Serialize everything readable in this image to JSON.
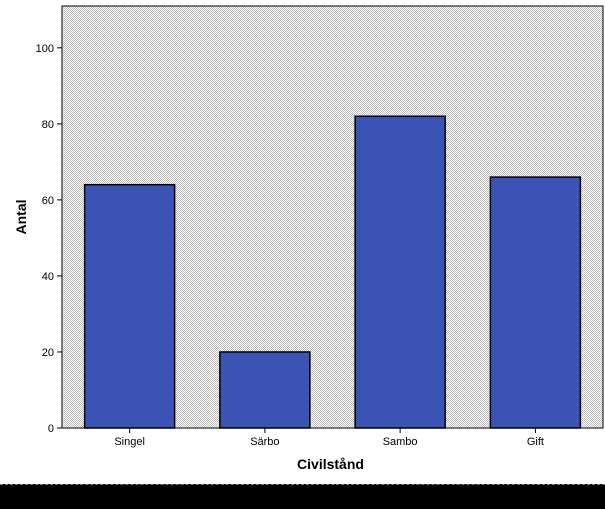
{
  "chart_data": {
    "type": "bar",
    "categories": [
      "Singel",
      "Särbo",
      "Sambo",
      "Gift"
    ],
    "values": [
      64,
      20,
      82,
      66
    ],
    "title": "",
    "xlabel": "Civilstånd",
    "ylabel": "Antal",
    "ylim": [
      0,
      111
    ],
    "yticks": [
      0,
      20,
      40,
      60,
      80,
      100
    ],
    "grid": false,
    "legend": "none",
    "bar_color": "#3a53b4",
    "plot_background": "#e6e6e6"
  }
}
